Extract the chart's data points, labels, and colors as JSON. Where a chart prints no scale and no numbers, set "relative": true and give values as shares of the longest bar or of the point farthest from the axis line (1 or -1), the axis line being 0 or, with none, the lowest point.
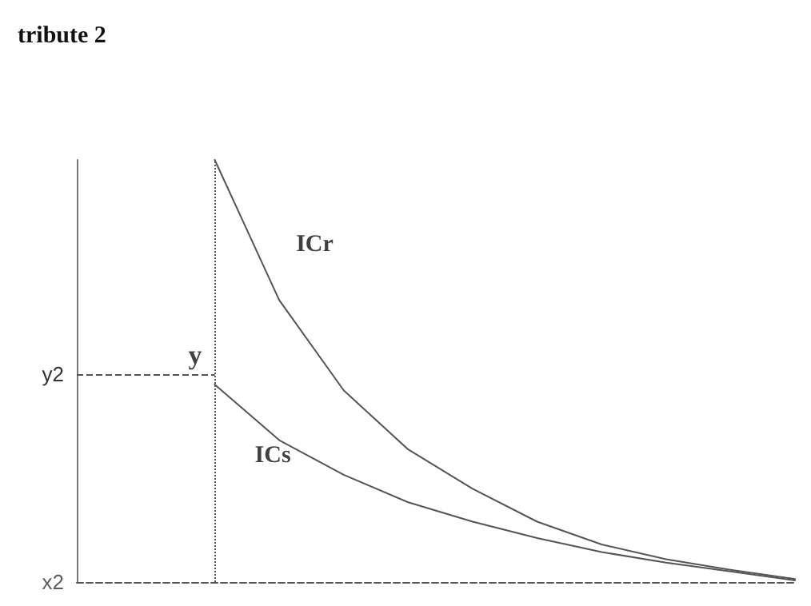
{
  "chart_data": {
    "type": "line",
    "relative": true,
    "categories": [
      null,
      null,
      null,
      null,
      null,
      null,
      null,
      null,
      null,
      null
    ],
    "series": [
      {
        "name": "ICr",
        "color": "#555555",
        "values": [
          1,
          0.668,
          0.454,
          0.314,
          0.221,
          0.143,
          0.089,
          0.054,
          0.029,
          0.007
        ]
      },
      {
        "name": "ICs",
        "color": "#555555",
        "values": [
          0.468,
          0.336,
          0.254,
          0.189,
          0.143,
          0.104,
          0.071,
          0.046,
          0.025,
          0.004
        ]
      }
    ],
    "ref_lines": [
      {
        "axis": "y",
        "value": 0.493,
        "label": "y2",
        "line_style": "dashed",
        "color": "#555555"
      },
      {
        "axis": "x",
        "line_style": "dotted",
        "color": "#555555"
      }
    ],
    "annotations": [
      "tribute 2",
      "y",
      "x2"
    ],
    "marker": "none",
    "line_style": "solid",
    "grid": false,
    "legend": false
  }
}
